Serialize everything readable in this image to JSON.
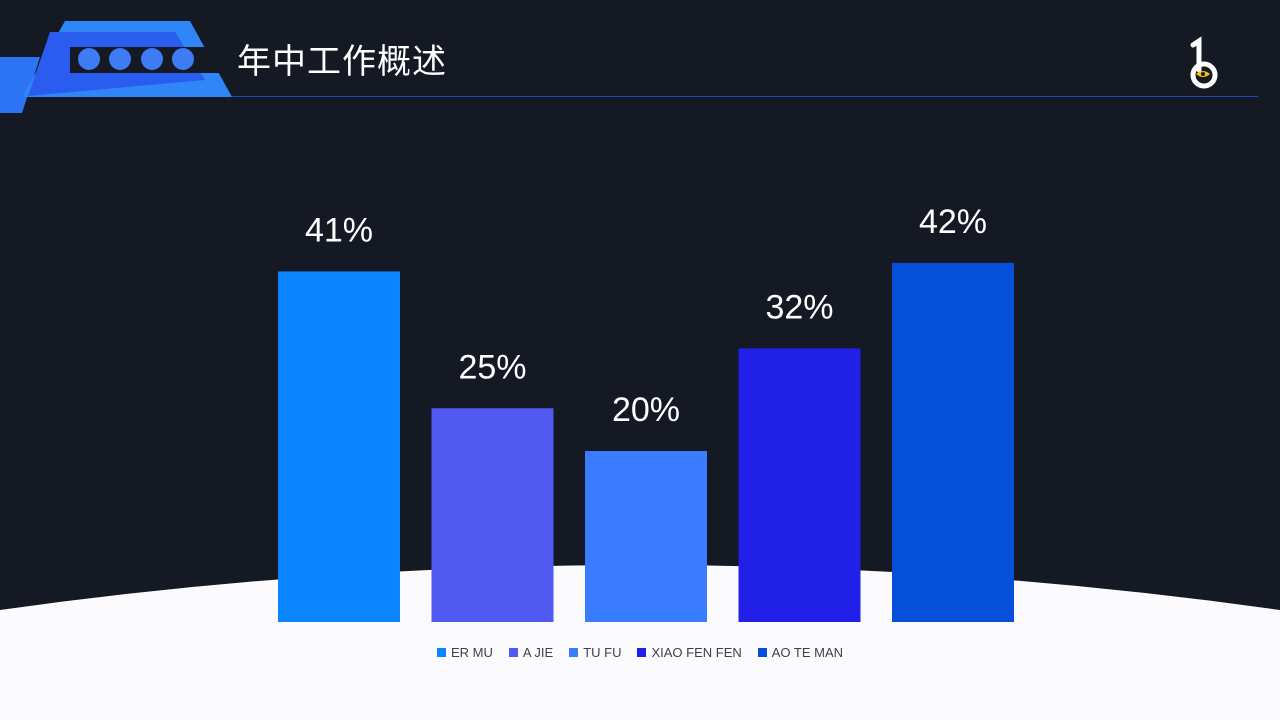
{
  "header": {
    "title": "年中工作概述",
    "accent": "#2b5cf0"
  },
  "logo": {
    "icon": "b-monogram-logo-icon",
    "color": "#ffffff",
    "eye_color": "#f5c400"
  },
  "chart_data": {
    "type": "bar",
    "title": "",
    "xlabel": "",
    "ylabel": "",
    "ylim": [
      0,
      50
    ],
    "grid": false,
    "legend": "bottom",
    "data_labels": [
      "41%",
      "25%",
      "20%",
      "32%",
      "42%"
    ],
    "series": [
      {
        "name": "ER MU",
        "values": [
          41
        ],
        "color": "#0a84ff"
      },
      {
        "name": "A JIE",
        "values": [
          25
        ],
        "color": "#5059f0"
      },
      {
        "name": "TU FU",
        "values": [
          20
        ],
        "color": "#3a7cff"
      },
      {
        "name": "XIAO FEN FEN",
        "values": [
          32
        ],
        "color": "#2020e8"
      },
      {
        "name": "AO TE MAN",
        "values": [
          42
        ],
        "color": "#0650d9"
      }
    ]
  }
}
